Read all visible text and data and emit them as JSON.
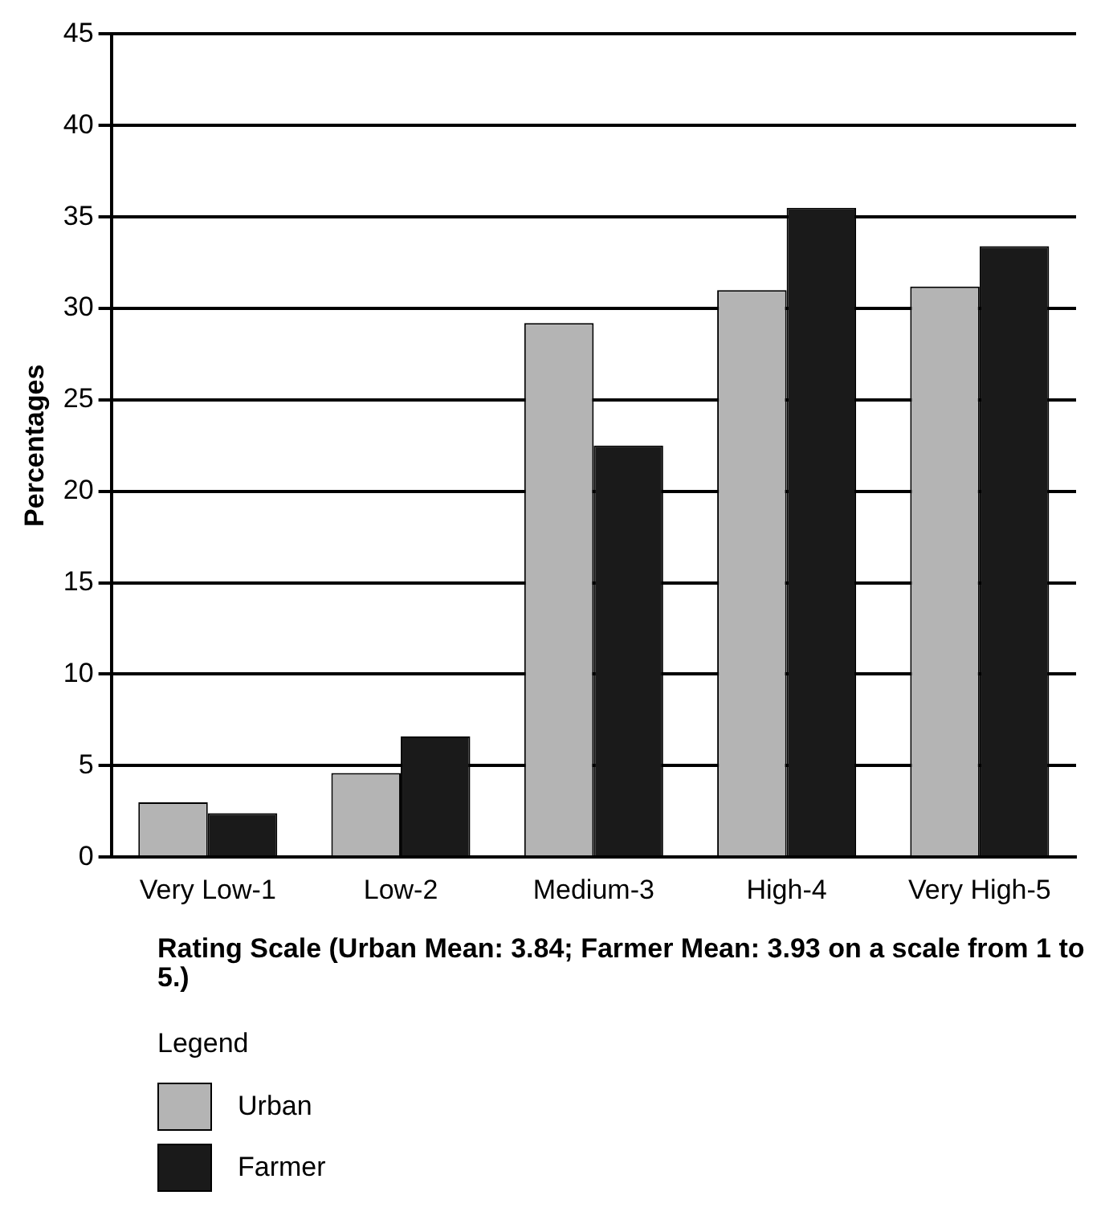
{
  "chart_data": {
    "type": "bar",
    "categories": [
      "Very Low-1",
      "Low-2",
      "Medium-3",
      "High-4",
      "Very High-5"
    ],
    "series": [
      {
        "name": "Urban",
        "color": "#b4b4b4",
        "values": [
          3.0,
          4.6,
          29.2,
          31.0,
          31.2
        ]
      },
      {
        "name": "Farmer",
        "color": "#1a1a1a",
        "values": [
          2.4,
          6.6,
          22.5,
          35.5,
          33.4
        ]
      }
    ],
    "xlabel": "Rating Scale (Urban Mean: 3.84; Farmer Mean: 3.93 on a scale from 1 to 5.)",
    "ylabel": "Percentages",
    "ylim": [
      0,
      45
    ],
    "yticks": [
      0,
      5,
      10,
      15,
      20,
      25,
      30,
      35,
      40,
      45
    ],
    "grid": "y",
    "legend": "bottom",
    "legend_title": "Legend"
  }
}
